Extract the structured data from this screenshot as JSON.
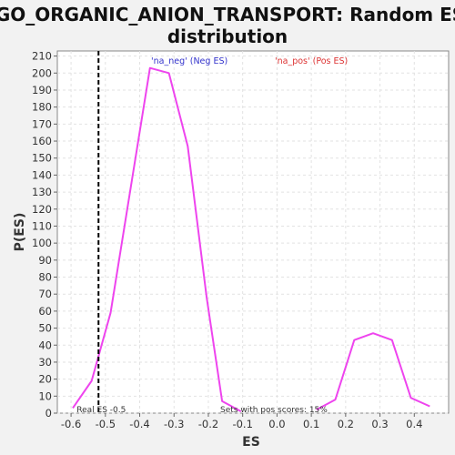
{
  "chart_data": {
    "type": "line",
    "title_line1": "GO_ORGANIC_ANION_TRANSPORT: Random ES",
    "title_line2": "distribution",
    "xlabel": "ES",
    "ylabel": "P(ES)",
    "xlim": [
      -0.64,
      0.5
    ],
    "ylim": [
      0,
      213
    ],
    "x_ticks": [
      -0.6,
      -0.5,
      -0.4,
      -0.3,
      -0.2,
      -0.1,
      0.0,
      0.1,
      0.2,
      0.3,
      0.4
    ],
    "x_tick_labels": [
      "-0.6",
      "-0.5",
      "-0.4",
      "-0.3",
      "-0.2",
      "-0.1",
      "0.0",
      "0.1",
      "0.2",
      "0.3",
      "0.4"
    ],
    "y_ticks": [
      0,
      10,
      20,
      30,
      40,
      50,
      60,
      70,
      80,
      90,
      100,
      110,
      120,
      130,
      140,
      150,
      160,
      170,
      180,
      190,
      200,
      210
    ],
    "y_tick_labels": [
      "0",
      "10",
      "20",
      "30",
      "40",
      "50",
      "60",
      "70",
      "80",
      "90",
      "100",
      "110",
      "120",
      "130",
      "140",
      "150",
      "160",
      "170",
      "180",
      "190",
      "200",
      "210"
    ],
    "grid": true,
    "series": [
      {
        "name": "'na_neg' (Neg ES)",
        "color": "#ee44ee",
        "x": [
          -0.595,
          -0.54,
          -0.485,
          -0.37,
          -0.315,
          -0.26,
          -0.205,
          -0.16,
          -0.105
        ],
        "y": [
          3,
          19,
          59,
          203,
          200,
          157,
          68,
          7,
          1
        ]
      },
      {
        "name": "'na_pos' (Pos ES)",
        "color": "#ee44ee",
        "x": [
          0.115,
          0.17,
          0.225,
          0.28,
          0.335,
          0.39,
          0.445
        ],
        "y": [
          2,
          8,
          43,
          47,
          43,
          9,
          4
        ]
      }
    ],
    "legend": [
      {
        "label": "'na_neg' (Neg ES)",
        "color": "#3333cc"
      },
      {
        "label": "'na_pos' (Pos ES)",
        "color": "#dd3333"
      }
    ],
    "real_es": {
      "x": -0.52,
      "label": "Real ES -0.5"
    },
    "annotation": "Sets with pos scores: 15%"
  }
}
